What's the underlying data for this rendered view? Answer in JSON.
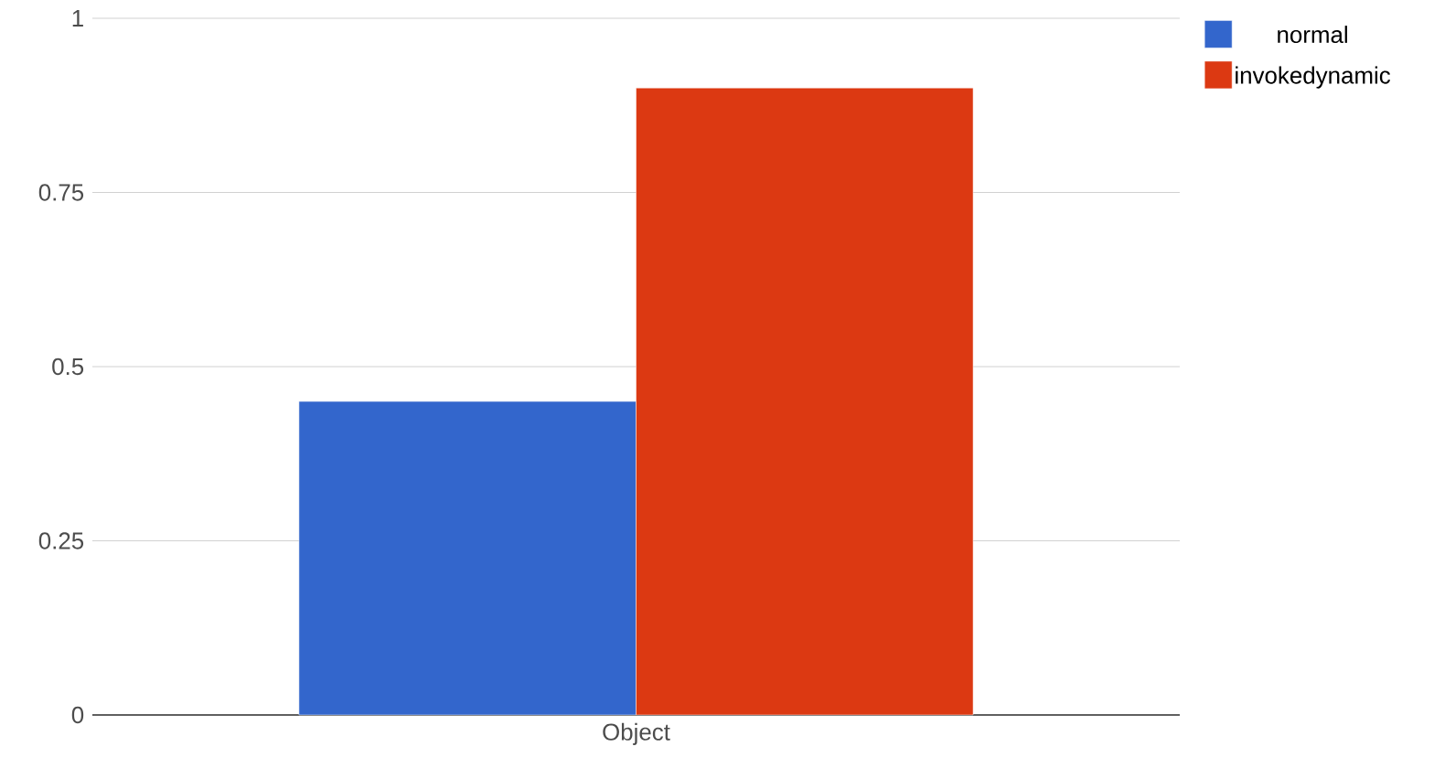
{
  "chart_data": {
    "type": "bar",
    "categories": [
      "Object"
    ],
    "series": [
      {
        "name": "normal",
        "color": "#3366cc",
        "values": [
          0.45
        ]
      },
      {
        "name": "invokedynamic",
        "color": "#dc3912",
        "values": [
          0.9
        ]
      }
    ],
    "ylim": [
      0,
      1
    ],
    "yticks": [
      0,
      0.25,
      0.5,
      0.75,
      1
    ],
    "grid": "y",
    "legend": "top right"
  }
}
